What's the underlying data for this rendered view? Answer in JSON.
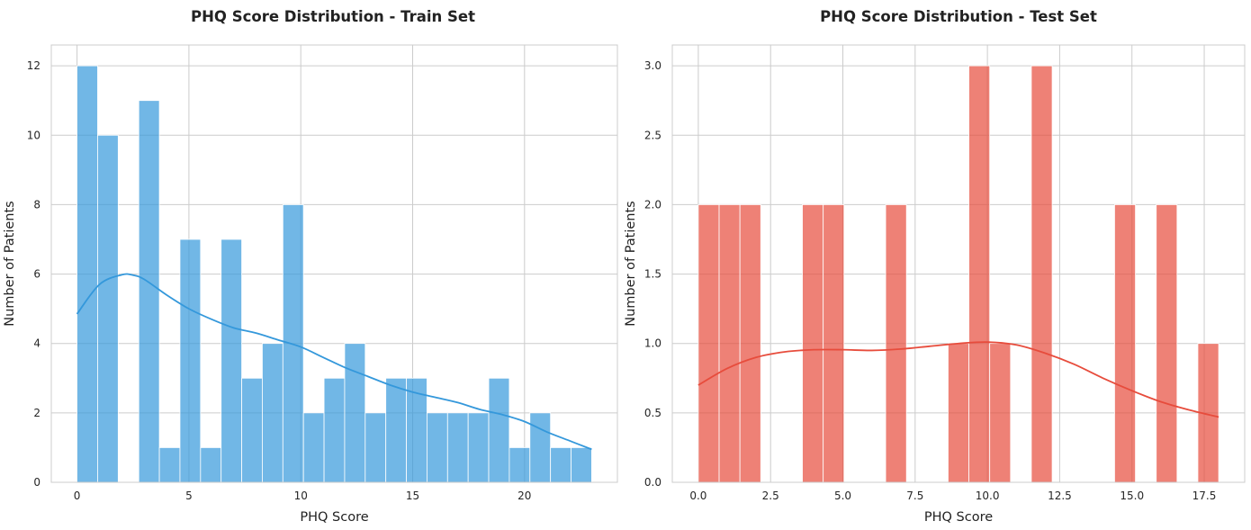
{
  "chart_data": [
    {
      "type": "bar",
      "subtype": "histogram",
      "title": "PHQ Score Distribution - Train Set",
      "xlabel": "PHQ Score",
      "ylabel": "Number of Patients",
      "xlim": [
        -1.15,
        24.15
      ],
      "ylim": [
        0,
        12.6
      ],
      "xticks": [
        0,
        5,
        10,
        15,
        20
      ],
      "xtick_labels": [
        "0",
        "5",
        "10",
        "15",
        "20"
      ],
      "yticks": [
        0,
        2,
        4,
        6,
        8,
        10,
        12
      ],
      "ytick_labels": [
        "0",
        "2",
        "4",
        "6",
        "8",
        "10",
        "12"
      ],
      "grid": true,
      "color": "#3498db",
      "bins": [
        {
          "x0": 0.0,
          "x1": 0.92,
          "count": 12
        },
        {
          "x0": 0.92,
          "x1": 1.84,
          "count": 10
        },
        {
          "x0": 1.84,
          "x1": 2.76,
          "count": 0
        },
        {
          "x0": 2.76,
          "x1": 3.68,
          "count": 11
        },
        {
          "x0": 3.68,
          "x1": 4.6,
          "count": 1
        },
        {
          "x0": 4.6,
          "x1": 5.52,
          "count": 7
        },
        {
          "x0": 5.52,
          "x1": 6.44,
          "count": 1
        },
        {
          "x0": 6.44,
          "x1": 7.36,
          "count": 7
        },
        {
          "x0": 7.36,
          "x1": 8.28,
          "count": 3
        },
        {
          "x0": 8.28,
          "x1": 9.2,
          "count": 4
        },
        {
          "x0": 9.2,
          "x1": 10.12,
          "count": 8
        },
        {
          "x0": 10.12,
          "x1": 11.04,
          "count": 2
        },
        {
          "x0": 11.04,
          "x1": 11.96,
          "count": 3
        },
        {
          "x0": 11.96,
          "x1": 12.88,
          "count": 4
        },
        {
          "x0": 12.88,
          "x1": 13.8,
          "count": 2
        },
        {
          "x0": 13.8,
          "x1": 14.72,
          "count": 3
        },
        {
          "x0": 14.72,
          "x1": 15.64,
          "count": 3
        },
        {
          "x0": 15.64,
          "x1": 16.56,
          "count": 2
        },
        {
          "x0": 16.56,
          "x1": 17.48,
          "count": 2
        },
        {
          "x0": 17.48,
          "x1": 18.4,
          "count": 2
        },
        {
          "x0": 18.4,
          "x1": 19.32,
          "count": 3
        },
        {
          "x0": 19.32,
          "x1": 20.24,
          "count": 1
        },
        {
          "x0": 20.24,
          "x1": 21.16,
          "count": 2
        },
        {
          "x0": 21.16,
          "x1": 22.08,
          "count": 1
        },
        {
          "x0": 22.08,
          "x1": 23.0,
          "count": 1
        }
      ],
      "kde": {
        "x": [
          0,
          1,
          2,
          2.5,
          3,
          4,
          5,
          6,
          7,
          8,
          9,
          10,
          11,
          12,
          13,
          14,
          15,
          16,
          17,
          18,
          19,
          20,
          21,
          22,
          23
        ],
        "y": [
          4.85,
          5.7,
          5.98,
          5.97,
          5.85,
          5.4,
          5.0,
          4.7,
          4.45,
          4.3,
          4.1,
          3.9,
          3.6,
          3.3,
          3.05,
          2.8,
          2.6,
          2.45,
          2.3,
          2.1,
          1.95,
          1.75,
          1.45,
          1.2,
          0.95
        ]
      }
    },
    {
      "type": "bar",
      "subtype": "histogram",
      "title": "PHQ Score Distribution - Test Set",
      "xlabel": "PHQ Score",
      "ylabel": "Number of Patients",
      "xlim": [
        -0.9,
        18.9
      ],
      "ylim": [
        0,
        3.15
      ],
      "xticks": [
        0.0,
        2.5,
        5.0,
        7.5,
        10.0,
        12.5,
        15.0,
        17.5
      ],
      "xtick_labels": [
        "0.0",
        "2.5",
        "5.0",
        "7.5",
        "10.0",
        "12.5",
        "15.0",
        "17.5"
      ],
      "yticks": [
        0.0,
        0.5,
        1.0,
        1.5,
        2.0,
        2.5,
        3.0
      ],
      "ytick_labels": [
        "0.0",
        "0.5",
        "1.0",
        "1.5",
        "2.0",
        "2.5",
        "3.0"
      ],
      "grid": true,
      "color": "#e74c3c",
      "bins": [
        {
          "x0": 0.0,
          "x1": 0.72,
          "count": 2
        },
        {
          "x0": 0.72,
          "x1": 1.44,
          "count": 2
        },
        {
          "x0": 1.44,
          "x1": 2.16,
          "count": 2
        },
        {
          "x0": 2.16,
          "x1": 2.88,
          "count": 0
        },
        {
          "x0": 2.88,
          "x1": 3.6,
          "count": 0
        },
        {
          "x0": 3.6,
          "x1": 4.32,
          "count": 2
        },
        {
          "x0": 4.32,
          "x1": 5.04,
          "count": 2
        },
        {
          "x0": 5.04,
          "x1": 5.76,
          "count": 0
        },
        {
          "x0": 5.76,
          "x1": 6.48,
          "count": 0
        },
        {
          "x0": 6.48,
          "x1": 7.2,
          "count": 2
        },
        {
          "x0": 7.2,
          "x1": 7.92,
          "count": 0
        },
        {
          "x0": 7.92,
          "x1": 8.64,
          "count": 0
        },
        {
          "x0": 8.64,
          "x1": 9.36,
          "count": 1
        },
        {
          "x0": 9.36,
          "x1": 10.08,
          "count": 3
        },
        {
          "x0": 10.08,
          "x1": 10.8,
          "count": 1
        },
        {
          "x0": 10.8,
          "x1": 11.52,
          "count": 0
        },
        {
          "x0": 11.52,
          "x1": 12.24,
          "count": 3
        },
        {
          "x0": 12.24,
          "x1": 12.96,
          "count": 0
        },
        {
          "x0": 12.96,
          "x1": 13.68,
          "count": 0
        },
        {
          "x0": 13.68,
          "x1": 14.4,
          "count": 0
        },
        {
          "x0": 14.4,
          "x1": 15.12,
          "count": 2
        },
        {
          "x0": 15.12,
          "x1": 15.84,
          "count": 0
        },
        {
          "x0": 15.84,
          "x1": 16.56,
          "count": 2
        },
        {
          "x0": 16.56,
          "x1": 17.28,
          "count": 0
        },
        {
          "x0": 17.28,
          "x1": 18.0,
          "count": 1
        }
      ],
      "kde": {
        "x": [
          0,
          1,
          2,
          3,
          4,
          5,
          6,
          7,
          8,
          9,
          10,
          11,
          12,
          13,
          14,
          15,
          16,
          17,
          18
        ],
        "y": [
          0.7,
          0.82,
          0.9,
          0.94,
          0.955,
          0.955,
          0.95,
          0.96,
          0.98,
          1.0,
          1.01,
          0.99,
          0.93,
          0.85,
          0.75,
          0.66,
          0.58,
          0.52,
          0.47
        ]
      }
    }
  ]
}
